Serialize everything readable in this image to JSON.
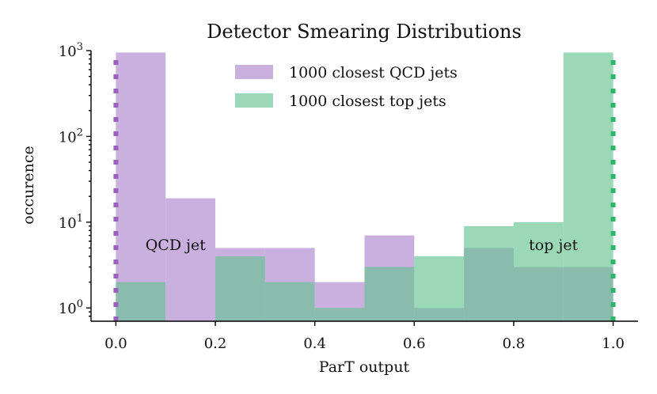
{
  "chart_data": {
    "type": "bar",
    "title": "Detector Smearing Distributions",
    "xlabel": "ParT output",
    "ylabel": "occurence",
    "yscale": "log",
    "xlim": [
      -0.05,
      1.05
    ],
    "ylim": [
      0.7,
      1000
    ],
    "x_ticks": [
      {
        "value": 0.0,
        "label": "0.0"
      },
      {
        "value": 0.2,
        "label": "0.2"
      },
      {
        "value": 0.4,
        "label": "0.4"
      },
      {
        "value": 0.6,
        "label": "0.6"
      },
      {
        "value": 0.8,
        "label": "0.8"
      },
      {
        "value": 1.0,
        "label": "1.0"
      }
    ],
    "y_ticks": [
      {
        "value": 1,
        "base": "10",
        "exp": "0"
      },
      {
        "value": 10,
        "base": "10",
        "exp": "1"
      },
      {
        "value": 100,
        "base": "10",
        "exp": "2"
      },
      {
        "value": 1000,
        "base": "10",
        "exp": "3"
      }
    ],
    "bin_edges": [
      0.0,
      0.1,
      0.2,
      0.3,
      0.4,
      0.5,
      0.6,
      0.7,
      0.8,
      0.9,
      1.0
    ],
    "series": [
      {
        "name": "1000 closest QCD jets",
        "color": "#b48fd2",
        "opacity": 0.7,
        "values": [
          950,
          19,
          5,
          5,
          2,
          7,
          1,
          5,
          3,
          3
        ]
      },
      {
        "name": "1000 closest top jets",
        "color": "#66c392",
        "opacity": 0.65,
        "values": [
          2,
          0,
          4,
          2,
          1,
          3,
          4,
          9,
          10,
          950
        ]
      }
    ],
    "vlines": [
      {
        "x": 0.0,
        "color": "#9b5fc0",
        "style": "dotted"
      },
      {
        "x": 1.0,
        "color": "#2fb36a",
        "style": "dotted"
      }
    ],
    "annotations": [
      {
        "text": "QCD jet",
        "x": 0.12,
        "y": 5.5
      },
      {
        "text": "top jet",
        "x": 0.88,
        "y": 5.5
      }
    ],
    "legend_position": "top-center",
    "grid": false
  }
}
